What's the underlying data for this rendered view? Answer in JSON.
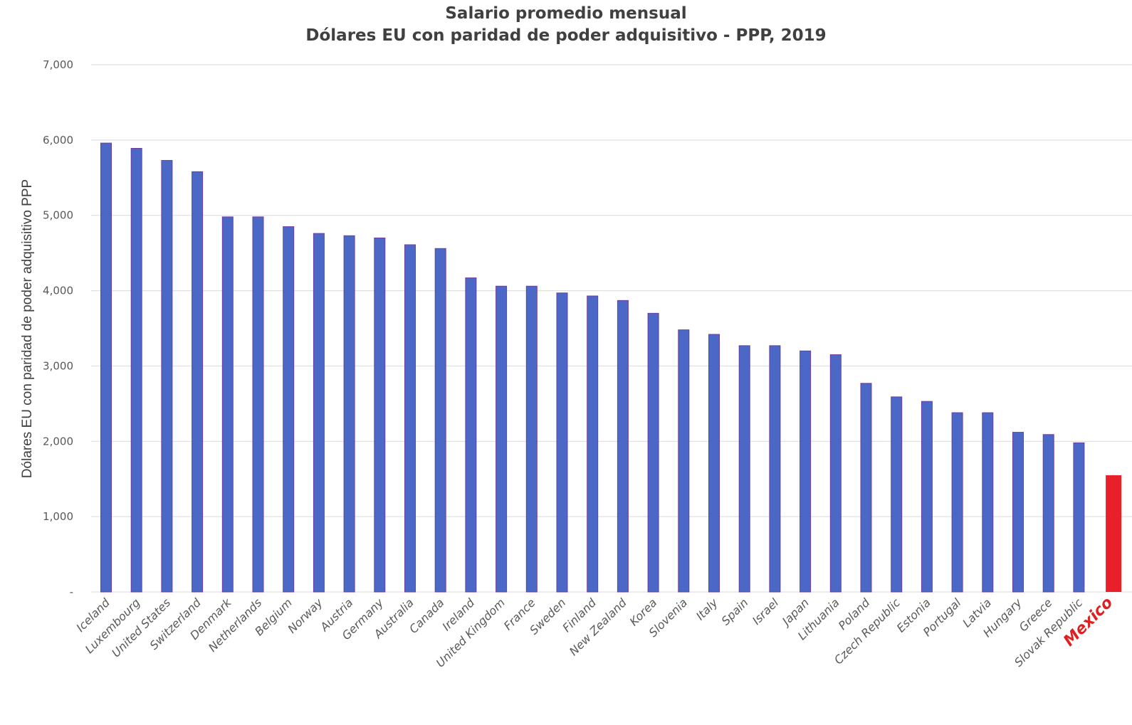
{
  "chart_data": {
    "type": "bar",
    "title": "Salario promedio mensual",
    "subtitle": "Dólares EU con paridad de poder adquisitivo - PPP, 2019",
    "xlabel": "",
    "ylabel": "Dólares EU con paridad de poder adquisitivo PPP",
    "ylim": [
      0,
      7000
    ],
    "yticks": [
      0,
      1000,
      2000,
      3000,
      4000,
      5000,
      6000,
      7000
    ],
    "ytick_labels": [
      "-",
      "1,000",
      "2,000",
      "3,000",
      "4,000",
      "5,000",
      "6,000",
      "7,000"
    ],
    "grid": true,
    "legend": "none",
    "categories": [
      "Iceland",
      "Luxembourg",
      "United States",
      "Switzerland",
      "Denmark",
      "Netherlands",
      "Belgium",
      "Norway",
      "Austria",
      "Germany",
      "Australia",
      "Canada",
      "Ireland",
      "United Kingdom",
      "France",
      "Sweden",
      "Finland",
      "New Zealand",
      "Korea",
      "Slovenia",
      "Italy",
      "Spain",
      "Israel",
      "Japan",
      "Lithuania",
      "Poland",
      "Czech Republic",
      "Estonia",
      "Portugal",
      "Latvia",
      "Hungary",
      "Greece",
      "Slovak Republic",
      "Mexico"
    ],
    "values": [
      5960,
      5890,
      5730,
      5580,
      4980,
      4980,
      4850,
      4760,
      4730,
      4700,
      4610,
      4560,
      4170,
      4060,
      4060,
      3970,
      3930,
      3870,
      3700,
      3480,
      3420,
      3270,
      3270,
      3200,
      3150,
      2770,
      2590,
      2530,
      2380,
      2380,
      2120,
      2090,
      1980,
      1550
    ],
    "highlight_category": "Mexico",
    "bar_color": "#4c68c6",
    "bar_edge_color": "#6a3fa0",
    "highlight_color": "#e8202a"
  }
}
